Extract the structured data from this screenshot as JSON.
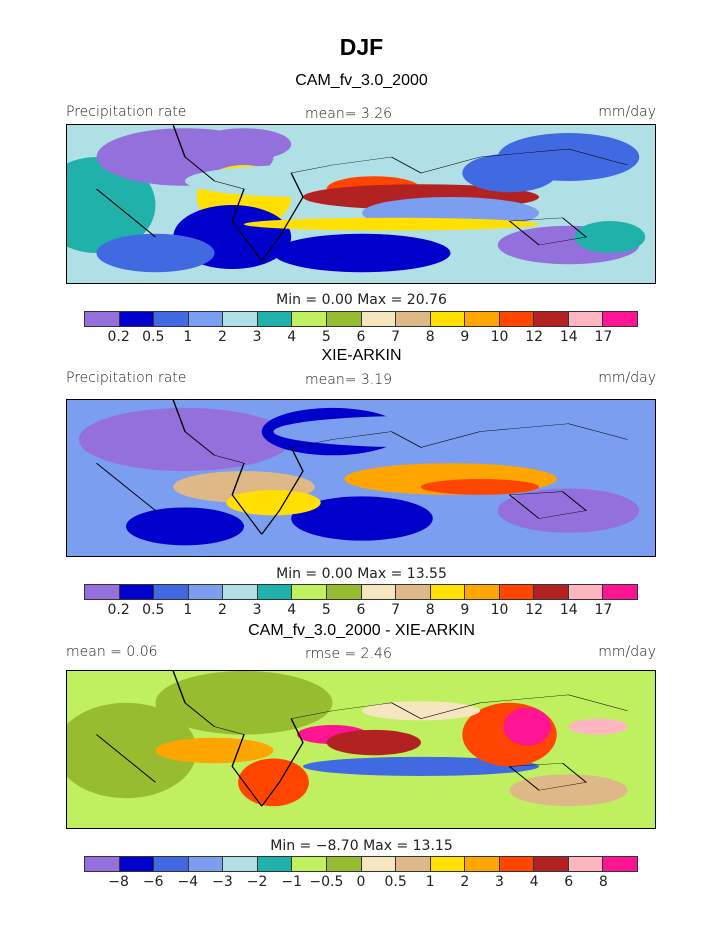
{
  "title": "DJF",
  "colors": [
    "#9370DB",
    "#0000CD",
    "#4169E1",
    "#7B9EF0",
    "#B0E0E6",
    "#20B2AA",
    "#C0F060",
    "#98BC30",
    "#F5E6C0",
    "#DEB887",
    "#FFE000",
    "#FFA500",
    "#FF4500",
    "#B22222",
    "#FFB6C1",
    "#FF1493"
  ],
  "panels": [
    {
      "title": "CAM_fv_3.0_2000",
      "left": "Precipitation rate",
      "center": "mean=    3.26",
      "right": "mm/day",
      "minmax": "Min =    0.00  Max =   20.76",
      "ticks": [
        "0.2",
        "0.5",
        "1",
        "2",
        "3",
        "4",
        "5",
        "6",
        "7",
        "8",
        "9",
        "10",
        "12",
        "14",
        "17"
      ]
    },
    {
      "title": "XIE-ARKIN",
      "left": "Precipitation rate",
      "center": "mean=    3.19",
      "right": "mm/day",
      "minmax": "Min =    0.00  Max =   13.55",
      "ticks": [
        "0.2",
        "0.5",
        "1",
        "2",
        "3",
        "4",
        "5",
        "6",
        "7",
        "8",
        "9",
        "10",
        "12",
        "14",
        "17"
      ]
    },
    {
      "title": "CAM_fv_3.0_2000 - XIE-ARKIN",
      "left": "mean =    0.06",
      "center": "rmse =    2.46",
      "right": "mm/day",
      "minmax": "Min =   −8.70  Max =   13.15",
      "ticks": [
        "−8",
        "−6",
        "−4",
        "−3",
        "−2",
        "−1",
        "−0.5",
        "0",
        "0.5",
        "1",
        "2",
        "3",
        "4",
        "6",
        "8"
      ]
    }
  ]
}
